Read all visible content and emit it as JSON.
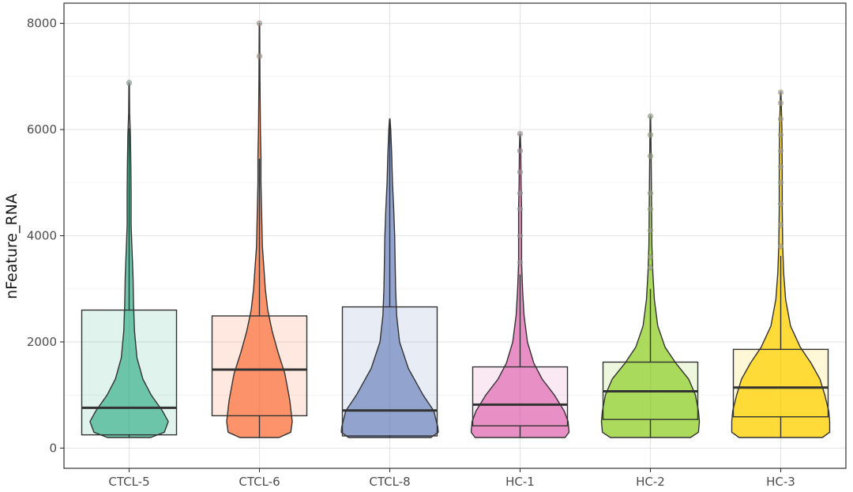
{
  "chart_data": {
    "type": "violin",
    "title": "",
    "xlabel": "",
    "ylabel": "nFeature_RNA",
    "ylim": [
      -380,
      8380
    ],
    "y_ticks": [
      0,
      2000,
      4000,
      6000,
      8000
    ],
    "grid": true,
    "legend": "none",
    "categories": [
      "CTCL-5",
      "CTCL-6",
      "CTCL-8",
      "HC-1",
      "HC-2",
      "HC-3"
    ],
    "series": [
      {
        "color": "#66c2a5",
        "box": {
          "q1": 250,
          "median": 760,
          "q3": 2600
        },
        "whisker": [
          200,
          6020
        ],
        "max": 6880,
        "outliers": [
          6880
        ],
        "violin": [
          [
            200,
            0.44
          ],
          [
            300,
            0.72
          ],
          [
            500,
            0.8
          ],
          [
            700,
            0.68
          ],
          [
            1000,
            0.45
          ],
          [
            1300,
            0.28
          ],
          [
            1700,
            0.16
          ],
          [
            2200,
            0.11
          ],
          [
            2700,
            0.09
          ],
          [
            3200,
            0.08
          ],
          [
            3600,
            0.065
          ],
          [
            4200,
            0.04
          ],
          [
            4800,
            0.04
          ],
          [
            5300,
            0.035
          ],
          [
            5600,
            0.03
          ],
          [
            5900,
            0.025
          ],
          [
            6300,
            0.01
          ],
          [
            6880,
            0.005
          ]
        ]
      },
      {
        "color": "#fc8d62",
        "box": {
          "q1": 610,
          "median": 1480,
          "q3": 2490
        },
        "whisker": [
          200,
          5450
        ],
        "max": 8000,
        "outliers": [
          7380,
          8000
        ],
        "violin": [
          [
            200,
            0.4
          ],
          [
            300,
            0.64
          ],
          [
            500,
            0.67
          ],
          [
            900,
            0.62
          ],
          [
            1400,
            0.52
          ],
          [
            1800,
            0.38
          ],
          [
            2200,
            0.26
          ],
          [
            2600,
            0.17
          ],
          [
            3000,
            0.12
          ],
          [
            3400,
            0.09
          ],
          [
            3800,
            0.06
          ],
          [
            4200,
            0.05
          ],
          [
            4600,
            0.04
          ],
          [
            5000,
            0.03
          ],
          [
            5500,
            0.03
          ],
          [
            6000,
            0.02
          ],
          [
            7000,
            0.01
          ],
          [
            8000,
            0.005
          ]
        ]
      },
      {
        "color": "#8da0cb",
        "box": {
          "q1": 230,
          "median": 710,
          "q3": 2660
        },
        "whisker": [
          200,
          6200
        ],
        "max": 6200,
        "outliers": [],
        "violin": [
          [
            200,
            0.84
          ],
          [
            300,
            0.99
          ],
          [
            400,
            0.98
          ],
          [
            700,
            0.9
          ],
          [
            1000,
            0.68
          ],
          [
            1500,
            0.38
          ],
          [
            2000,
            0.2
          ],
          [
            2500,
            0.14
          ],
          [
            3000,
            0.12
          ],
          [
            3500,
            0.11
          ],
          [
            4000,
            0.1
          ],
          [
            4500,
            0.08
          ],
          [
            5000,
            0.055
          ],
          [
            5500,
            0.04
          ],
          [
            6000,
            0.02
          ],
          [
            6200,
            0.005
          ]
        ]
      },
      {
        "color": "#e78ac3",
        "box": {
          "q1": 420,
          "median": 820,
          "q3": 1530
        },
        "whisker": [
          200,
          3270
        ],
        "max": 5920,
        "outliers": [
          3500,
          4000,
          4500,
          4800,
          5200,
          5600,
          5920
        ],
        "violin": [
          [
            200,
            0.92
          ],
          [
            300,
            1.0
          ],
          [
            500,
            0.98
          ],
          [
            700,
            0.9
          ],
          [
            1000,
            0.7
          ],
          [
            1300,
            0.45
          ],
          [
            1600,
            0.28
          ],
          [
            2000,
            0.15
          ],
          [
            2500,
            0.08
          ],
          [
            3000,
            0.05
          ],
          [
            3500,
            0.03
          ],
          [
            4000,
            0.03
          ],
          [
            4500,
            0.03
          ],
          [
            5000,
            0.02
          ],
          [
            5600,
            0.015
          ],
          [
            5920,
            0.005
          ]
        ]
      },
      {
        "color": "#a6d854",
        "box": {
          "q1": 540,
          "median": 1070,
          "q3": 1620
        },
        "whisker": [
          200,
          3000
        ],
        "max": 6250,
        "outliers": [
          3400,
          3600,
          4100,
          4500,
          4800,
          5500,
          5900,
          6250
        ],
        "violin": [
          [
            200,
            0.82
          ],
          [
            300,
            0.98
          ],
          [
            500,
            1.0
          ],
          [
            700,
            0.98
          ],
          [
            1000,
            0.92
          ],
          [
            1300,
            0.78
          ],
          [
            1600,
            0.52
          ],
          [
            1900,
            0.3
          ],
          [
            2300,
            0.15
          ],
          [
            2800,
            0.08
          ],
          [
            3300,
            0.05
          ],
          [
            3800,
            0.03
          ],
          [
            4500,
            0.025
          ],
          [
            5000,
            0.02
          ],
          [
            5500,
            0.015
          ],
          [
            6250,
            0.005
          ]
        ]
      },
      {
        "color": "#ffd92f",
        "box": {
          "q1": 590,
          "median": 1140,
          "q3": 1860
        },
        "whisker": [
          200,
          3620
        ],
        "max": 6700,
        "outliers": [
          3800,
          4200,
          4600,
          5000,
          5300,
          5600,
          5900,
          6200,
          6500,
          6700
        ],
        "violin": [
          [
            200,
            0.85
          ],
          [
            300,
            1.0
          ],
          [
            500,
            1.0
          ],
          [
            700,
            0.98
          ],
          [
            1000,
            0.9
          ],
          [
            1300,
            0.8
          ],
          [
            1600,
            0.62
          ],
          [
            1900,
            0.4
          ],
          [
            2300,
            0.2
          ],
          [
            2800,
            0.1
          ],
          [
            3300,
            0.06
          ],
          [
            3800,
            0.04
          ],
          [
            4500,
            0.03
          ],
          [
            5200,
            0.03
          ],
          [
            6000,
            0.025
          ],
          [
            6700,
            0.005
          ]
        ]
      }
    ]
  }
}
